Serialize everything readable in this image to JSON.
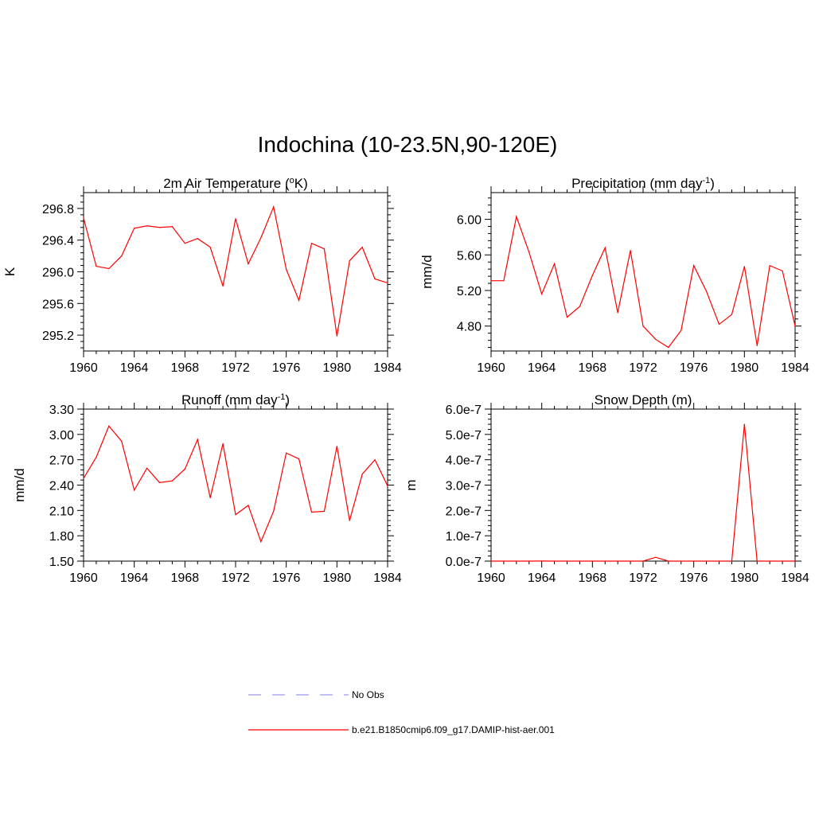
{
  "title": "Indochina (10-23.5N,90-120E)",
  "chart_data": [
    {
      "type": "line",
      "title": {
        "text": "2m Air Temperature (",
        "sup": "o",
        "after": "K)"
      },
      "ylabel": "K",
      "xlabel": "",
      "xlim": [
        1960,
        1984
      ],
      "ylim": [
        295.0,
        297.0
      ],
      "xticks": [
        1960,
        1964,
        1968,
        1972,
        1976,
        1980,
        1984
      ],
      "xtick_labels": [
        "1960",
        "1964",
        "1968",
        "1972",
        "1976",
        "1980",
        "1984"
      ],
      "yticks": [
        295.2,
        295.6,
        296.0,
        296.4,
        296.8
      ],
      "ytick_labels": [
        "295.2",
        "295.6",
        "296.0",
        "296.4",
        "296.8"
      ],
      "x": [
        1960,
        1961,
        1962,
        1963,
        1964,
        1965,
        1966,
        1967,
        1968,
        1969,
        1970,
        1971,
        1972,
        1973,
        1974,
        1975,
        1976,
        1977,
        1978,
        1979,
        1980,
        1981,
        1982,
        1983,
        1984
      ],
      "series": [
        {
          "name": "b.e21.B1850cmip6.f09_g17.DAMIP-hist-aer.001",
          "color": "#ff0000",
          "values": [
            296.68,
            296.07,
            296.04,
            296.2,
            296.55,
            296.58,
            296.56,
            296.57,
            296.36,
            296.42,
            296.31,
            295.82,
            296.67,
            296.1,
            296.43,
            296.82,
            296.03,
            295.64,
            296.36,
            296.29,
            295.19,
            296.14,
            296.31,
            295.91,
            295.86
          ]
        }
      ]
    },
    {
      "type": "line",
      "title": {
        "text": "Precipitation (mm day",
        "sup": "-1",
        "after": ")"
      },
      "ylabel": "mm/d",
      "xlabel": "",
      "xlim": [
        1960,
        1984
      ],
      "ylim": [
        4.52,
        6.3
      ],
      "xticks": [
        1960,
        1964,
        1968,
        1972,
        1976,
        1980,
        1984
      ],
      "xtick_labels": [
        "1960",
        "1964",
        "1968",
        "1972",
        "1976",
        "1980",
        "1984"
      ],
      "yticks": [
        4.8,
        5.2,
        5.6,
        6.0
      ],
      "ytick_labels": [
        "4.80",
        "5.20",
        "5.60",
        "6.00"
      ],
      "x": [
        1960,
        1961,
        1962,
        1963,
        1964,
        1965,
        1966,
        1967,
        1968,
        1969,
        1970,
        1971,
        1972,
        1973,
        1974,
        1975,
        1976,
        1977,
        1978,
        1979,
        1980,
        1981,
        1982,
        1983,
        1984
      ],
      "series": [
        {
          "name": "b.e21.B1850cmip6.f09_g17.DAMIP-hist-aer.001",
          "color": "#ff0000",
          "values": [
            5.31,
            5.31,
            6.03,
            5.63,
            5.16,
            5.5,
            4.9,
            5.02,
            5.37,
            5.68,
            4.95,
            5.65,
            4.8,
            4.65,
            4.56,
            4.75,
            5.48,
            5.19,
            4.82,
            4.93,
            5.47,
            4.58,
            5.48,
            5.42,
            4.8
          ]
        }
      ]
    },
    {
      "type": "line",
      "title": {
        "text": "Runoff (mm day",
        "sup": "-1",
        "after": ")"
      },
      "ylabel": "mm/d",
      "xlabel": "",
      "xlim": [
        1960,
        1984
      ],
      "ylim": [
        1.5,
        3.3
      ],
      "xticks": [
        1960,
        1964,
        1968,
        1972,
        1976,
        1980,
        1984
      ],
      "xtick_labels": [
        "1960",
        "1964",
        "1968",
        "1972",
        "1976",
        "1980",
        "1984"
      ],
      "yticks": [
        1.5,
        1.8,
        2.1,
        2.4,
        2.7,
        3.0,
        3.3
      ],
      "ytick_labels": [
        "1.50",
        "1.80",
        "2.10",
        "2.40",
        "2.70",
        "3.00",
        "3.30"
      ],
      "x": [
        1960,
        1961,
        1962,
        1963,
        1964,
        1965,
        1966,
        1967,
        1968,
        1969,
        1970,
        1971,
        1972,
        1973,
        1974,
        1975,
        1976,
        1977,
        1978,
        1979,
        1980,
        1981,
        1982,
        1983,
        1984
      ],
      "series": [
        {
          "name": "b.e21.B1850cmip6.f09_g17.DAMIP-hist-aer.001",
          "color": "#ff0000",
          "values": [
            2.48,
            2.73,
            3.1,
            2.92,
            2.34,
            2.6,
            2.43,
            2.45,
            2.59,
            2.94,
            2.25,
            2.89,
            2.05,
            2.16,
            1.73,
            2.09,
            2.78,
            2.71,
            2.08,
            2.09,
            2.86,
            1.98,
            2.53,
            2.7,
            2.39
          ]
        }
      ]
    },
    {
      "type": "line",
      "title": {
        "text": "Snow Depth (m)",
        "sup": "",
        "after": ""
      },
      "ylabel": "m",
      "xlabel": "",
      "xlim": [
        1960,
        1984
      ],
      "ylim": [
        0,
        6e-07
      ],
      "xticks": [
        1960,
        1964,
        1968,
        1972,
        1976,
        1980,
        1984
      ],
      "xtick_labels": [
        "1960",
        "1964",
        "1968",
        "1972",
        "1976",
        "1980",
        "1984"
      ],
      "yticks": [
        0,
        1e-07,
        2e-07,
        3e-07,
        4e-07,
        5e-07,
        6e-07
      ],
      "ytick_labels": [
        "0.0e-7",
        "1.0e-7",
        "2.0e-7",
        "3.0e-7",
        "4.0e-7",
        "5.0e-7",
        "6.0e-7"
      ],
      "x": [
        1960,
        1961,
        1962,
        1963,
        1964,
        1965,
        1966,
        1967,
        1968,
        1969,
        1970,
        1971,
        1972,
        1973,
        1974,
        1975,
        1976,
        1977,
        1978,
        1979,
        1980,
        1981,
        1982,
        1983,
        1984
      ],
      "series": [
        {
          "name": "b.e21.B1850cmip6.f09_g17.DAMIP-hist-aer.001",
          "color": "#ff0000",
          "values": [
            0,
            0,
            0,
            0,
            5e-10,
            0,
            0,
            0,
            0,
            0,
            0,
            0,
            0,
            1.5e-08,
            0,
            0,
            0,
            0,
            0,
            0,
            5.4e-07,
            0,
            0,
            0,
            0
          ]
        }
      ]
    }
  ],
  "legend": [
    {
      "label": "No Obs",
      "color": "#9999ee",
      "dash": true
    },
    {
      "label": "b.e21.B1850cmip6.f09_g17.DAMIP-hist-aer.001",
      "color": "#ff0000",
      "dash": false
    }
  ]
}
